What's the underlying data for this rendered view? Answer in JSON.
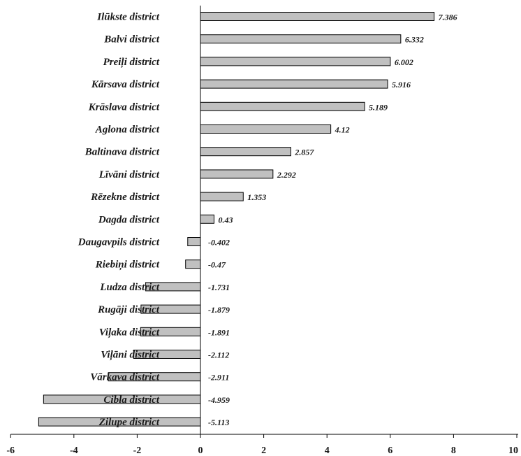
{
  "chart_data": {
    "type": "bar",
    "orientation": "horizontal",
    "categories": [
      "Ilūkste district",
      "Balvi district",
      "Preiļi district",
      "Kārsava district",
      "Krāslava district",
      "Aglona district",
      "Baltinava district",
      "Līvāni district",
      "Rēzekne district",
      "Dagda district",
      "Daugavpils district",
      "Riebiņi district",
      "Ludza district",
      "Rugāji district",
      "Viļaka district",
      "Viļāni district",
      "Vārkava district",
      "Cibla district",
      "Zilupe district"
    ],
    "values": [
      7.386,
      6.332,
      6.002,
      5.916,
      5.189,
      4.12,
      2.857,
      2.292,
      1.353,
      0.43,
      -0.402,
      -0.47,
      -1.731,
      -1.879,
      -1.891,
      -2.112,
      -2.911,
      -4.959,
      -5.113
    ],
    "value_labels": [
      "7.386",
      "6.332",
      "6.002",
      "5.916",
      "5.189",
      "4.12",
      "2.857",
      "2.292",
      "1.353",
      "0.43",
      "-0.402",
      "-0.47",
      "-1.731",
      "-1.879",
      "-1.891",
      "-2.112",
      "-2.911",
      "-4.959",
      "-5.113"
    ],
    "xlim": [
      -6,
      10
    ],
    "xticks": [
      -6,
      -4,
      -2,
      0,
      2,
      4,
      6,
      8,
      10
    ],
    "title": "",
    "xlabel": "",
    "ylabel": "",
    "grid": false,
    "legend": "none",
    "bar_color": "#c0c0c0"
  }
}
